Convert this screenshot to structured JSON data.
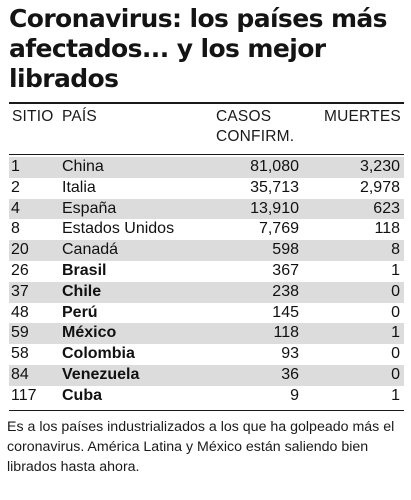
{
  "title": "Coronavirus: los países más afectados... y los mejor librados",
  "table": {
    "headers": {
      "sitio": "SITIO",
      "pais": "PAÍS",
      "casos_line1": "CASOS",
      "casos_line2": "CONFIRM.",
      "muertes": "MUERTES"
    },
    "rows": [
      {
        "sitio": "1",
        "pais": "China",
        "casos": "81,080",
        "muertes": "3,230"
      },
      {
        "sitio": "2",
        "pais": "Italia",
        "casos": "35,713",
        "muertes": "2,978"
      },
      {
        "sitio": "4",
        "pais": "España",
        "casos": "13,910",
        "muertes": "623"
      },
      {
        "sitio": "8",
        "pais": "Estados Unidos",
        "casos": "7,769",
        "muertes": "118"
      },
      {
        "sitio": "20",
        "pais": "Canadá",
        "casos": "598",
        "muertes": "8"
      },
      {
        "sitio": "26",
        "pais": "Brasil",
        "casos": "367",
        "muertes": "1"
      },
      {
        "sitio": "37",
        "pais": "Chile",
        "casos": "238",
        "muertes": "0"
      },
      {
        "sitio": "48",
        "pais": "Perú",
        "casos": "145",
        "muertes": "0"
      },
      {
        "sitio": "59",
        "pais": "México",
        "casos": "118",
        "muertes": "1"
      },
      {
        "sitio": "58",
        "pais": "Colombia",
        "casos": "93",
        "muertes": "0"
      },
      {
        "sitio": "84",
        "pais": "Venezuela",
        "casos": "36",
        "muertes": "0"
      },
      {
        "sitio": "117",
        "pais": "Cuba",
        "casos": "9",
        "muertes": "1"
      }
    ]
  },
  "note": "Es a los países industrializados a los que ha golpeado más el coronavirus. América Latina y México están saliendo bien librados hasta ahora.",
  "colors": {
    "row_shade": "#dcdcdc",
    "text": "#111111",
    "rule": "#1a1a1a"
  }
}
